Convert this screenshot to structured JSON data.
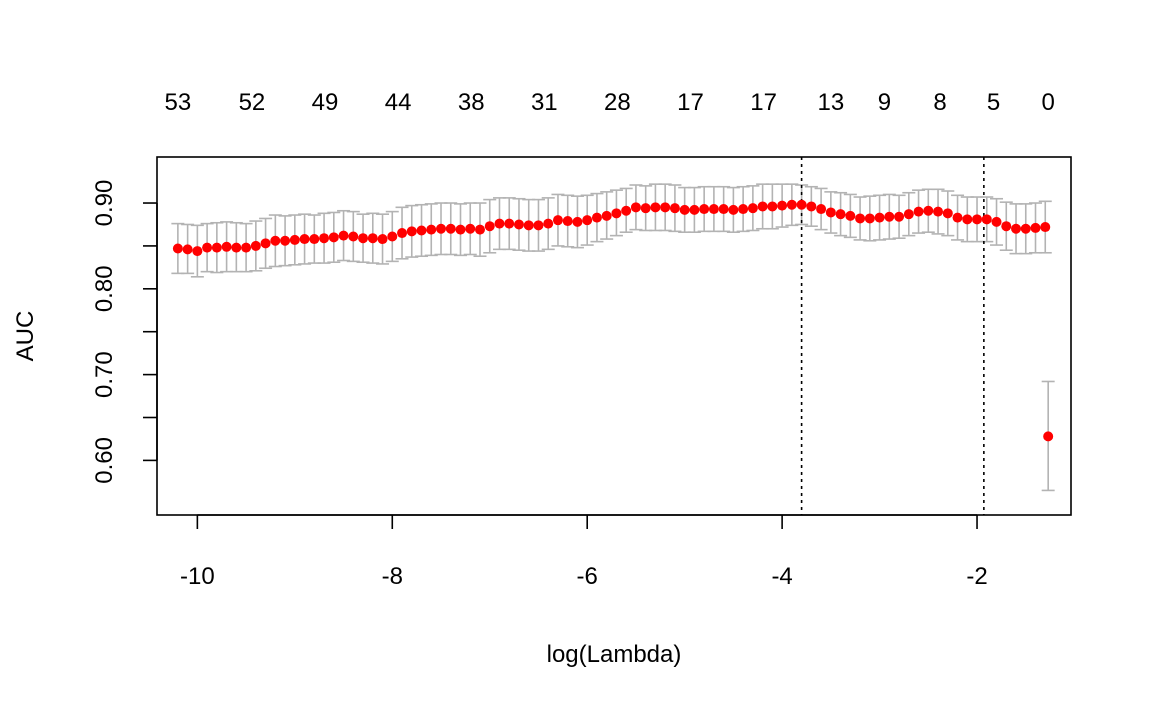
{
  "chart_data": {
    "type": "scatter",
    "title": "",
    "xlabel": "log(Lambda)",
    "ylabel": "AUC",
    "xlim": [
      -10.25,
      -1.2
    ],
    "ylim": [
      0.555,
      0.935
    ],
    "x_ticks": [
      -10,
      -8,
      -6,
      -4,
      -2
    ],
    "x_tick_labels": [
      "-10",
      "-8",
      "-6",
      "-4",
      "-2"
    ],
    "y_ticks": [
      0.6,
      0.65,
      0.7,
      0.75,
      0.8,
      0.85,
      0.9
    ],
    "y_tick_labels": [
      "0.60",
      "",
      "0.70",
      "",
      "0.80",
      "",
      "0.90"
    ],
    "top_axis": {
      "label": "",
      "positions": [
        -10.2,
        -9.44,
        -8.69,
        -7.94,
        -7.19,
        -6.44,
        -5.69,
        -4.94,
        -4.19,
        -3.5,
        -2.95,
        -2.38,
        -1.83,
        -1.27
      ],
      "labels": [
        "53",
        "52",
        "49",
        "44",
        "38",
        "31",
        "28",
        "17",
        "17",
        "13",
        "9",
        "8",
        "5",
        "0"
      ]
    },
    "vlines": [
      -3.8,
      -1.93
    ],
    "point_color": "#ff0000",
    "errorbar_color": "#b3b3b3",
    "vline_color": "#000000",
    "grid": false,
    "series": [
      {
        "x": [
          -10.2,
          -10.1,
          -10.0,
          -9.9,
          -9.8,
          -9.7,
          -9.6,
          -9.5,
          -9.4,
          -9.3,
          -9.2,
          -9.1,
          -9.0,
          -8.9,
          -8.8,
          -8.7,
          -8.6,
          -8.5,
          -8.4,
          -8.3,
          -8.2,
          -8.1,
          -8.0,
          -7.9,
          -7.8,
          -7.7,
          -7.6,
          -7.5,
          -7.4,
          -7.3,
          -7.2,
          -7.1,
          -7.0,
          -6.9,
          -6.8,
          -6.7,
          -6.6,
          -6.5,
          -6.4,
          -6.3,
          -6.2,
          -6.1,
          -6.0,
          -5.9,
          -5.8,
          -5.7,
          -5.6,
          -5.5,
          -5.4,
          -5.3,
          -5.2,
          -5.1,
          -5.0,
          -4.9,
          -4.8,
          -4.7,
          -4.6,
          -4.5,
          -4.4,
          -4.3,
          -4.2,
          -4.1,
          -4.0,
          -3.9,
          -3.8,
          -3.7,
          -3.6,
          -3.5,
          -3.4,
          -3.3,
          -3.2,
          -3.1,
          -3.0,
          -2.9,
          -2.8,
          -2.7,
          -2.6,
          -2.5,
          -2.4,
          -2.3,
          -2.2,
          -2.1,
          -2.0,
          -1.9,
          -1.8,
          -1.7,
          -1.6,
          -1.5,
          -1.4,
          -1.3,
          -1.27
        ],
        "y": [
          0.847,
          0.846,
          0.844,
          0.848,
          0.848,
          0.849,
          0.848,
          0.848,
          0.85,
          0.853,
          0.856,
          0.856,
          0.857,
          0.858,
          0.858,
          0.859,
          0.86,
          0.862,
          0.861,
          0.859,
          0.859,
          0.858,
          0.861,
          0.865,
          0.867,
          0.868,
          0.869,
          0.87,
          0.87,
          0.869,
          0.87,
          0.869,
          0.873,
          0.876,
          0.876,
          0.875,
          0.874,
          0.874,
          0.876,
          0.88,
          0.879,
          0.878,
          0.88,
          0.883,
          0.885,
          0.888,
          0.891,
          0.895,
          0.894,
          0.895,
          0.895,
          0.894,
          0.892,
          0.892,
          0.893,
          0.893,
          0.893,
          0.892,
          0.893,
          0.894,
          0.896,
          0.896,
          0.897,
          0.898,
          0.898,
          0.896,
          0.893,
          0.889,
          0.887,
          0.885,
          0.882,
          0.882,
          0.883,
          0.884,
          0.884,
          0.887,
          0.89,
          0.891,
          0.89,
          0.888,
          0.883,
          0.881,
          0.881,
          0.881,
          0.878,
          0.873,
          0.87,
          0.87,
          0.871,
          0.872,
          0.628
        ],
        "lower": [
          0.818,
          0.818,
          0.814,
          0.82,
          0.819,
          0.82,
          0.82,
          0.82,
          0.821,
          0.824,
          0.826,
          0.827,
          0.828,
          0.829,
          0.83,
          0.83,
          0.831,
          0.833,
          0.832,
          0.831,
          0.83,
          0.829,
          0.832,
          0.835,
          0.837,
          0.838,
          0.839,
          0.84,
          0.84,
          0.839,
          0.84,
          0.838,
          0.842,
          0.846,
          0.846,
          0.845,
          0.844,
          0.844,
          0.846,
          0.85,
          0.849,
          0.848,
          0.851,
          0.855,
          0.858,
          0.862,
          0.866,
          0.869,
          0.868,
          0.868,
          0.868,
          0.867,
          0.866,
          0.866,
          0.867,
          0.867,
          0.867,
          0.866,
          0.867,
          0.868,
          0.87,
          0.87,
          0.872,
          0.874,
          0.875,
          0.873,
          0.869,
          0.865,
          0.862,
          0.86,
          0.857,
          0.856,
          0.857,
          0.858,
          0.859,
          0.862,
          0.865,
          0.866,
          0.864,
          0.862,
          0.857,
          0.855,
          0.855,
          0.855,
          0.851,
          0.845,
          0.841,
          0.841,
          0.842,
          0.842,
          0.565
        ],
        "upper": [
          0.876,
          0.875,
          0.874,
          0.876,
          0.877,
          0.878,
          0.877,
          0.876,
          0.879,
          0.882,
          0.886,
          0.885,
          0.886,
          0.887,
          0.886,
          0.888,
          0.889,
          0.891,
          0.89,
          0.887,
          0.888,
          0.887,
          0.89,
          0.895,
          0.897,
          0.898,
          0.899,
          0.9,
          0.9,
          0.899,
          0.9,
          0.9,
          0.904,
          0.906,
          0.906,
          0.905,
          0.904,
          0.904,
          0.906,
          0.91,
          0.909,
          0.908,
          0.909,
          0.911,
          0.913,
          0.915,
          0.917,
          0.921,
          0.92,
          0.922,
          0.922,
          0.921,
          0.918,
          0.918,
          0.919,
          0.919,
          0.919,
          0.918,
          0.919,
          0.92,
          0.922,
          0.922,
          0.922,
          0.922,
          0.921,
          0.919,
          0.917,
          0.913,
          0.912,
          0.91,
          0.907,
          0.908,
          0.909,
          0.91,
          0.909,
          0.912,
          0.915,
          0.916,
          0.916,
          0.914,
          0.909,
          0.907,
          0.907,
          0.907,
          0.905,
          0.901,
          0.899,
          0.899,
          0.9,
          0.902,
          0.692
        ]
      }
    ]
  }
}
